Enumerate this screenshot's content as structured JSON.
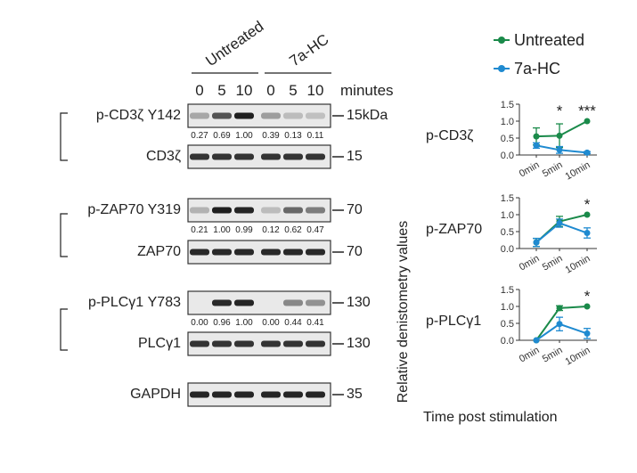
{
  "header": {
    "groups": [
      "Untreated",
      "7a-HC"
    ],
    "lanes": [
      "0",
      "5",
      "10",
      "0",
      "5",
      "10"
    ],
    "unit": "minutes"
  },
  "blots": [
    {
      "id": "pcd3",
      "label": "p-CD3ζ Y142",
      "mw": "15kDa",
      "intensity": [
        0.3,
        0.7,
        0.95,
        0.35,
        0.2,
        0.18
      ],
      "quant": [
        "0.27",
        "0.69",
        "1.00",
        "0.39",
        "0.13",
        "0.11"
      ]
    },
    {
      "id": "cd3",
      "label": "CD3ζ",
      "mw": "15",
      "intensity": [
        0.85,
        0.85,
        0.85,
        0.85,
        0.85,
        0.85
      ],
      "quant": []
    },
    {
      "id": "pzap",
      "label": "p-ZAP70 Y319",
      "mw": "70",
      "intensity": [
        0.25,
        0.95,
        0.92,
        0.2,
        0.6,
        0.5
      ],
      "quant": [
        "0.21",
        "1.00",
        "0.99",
        "0.12",
        "0.62",
        "0.47"
      ]
    },
    {
      "id": "zap",
      "label": "ZAP70",
      "mw": "70",
      "intensity": [
        0.9,
        0.9,
        0.9,
        0.9,
        0.9,
        0.9
      ],
      "quant": []
    },
    {
      "id": "pplc",
      "label": "p-PLCγ1 Y783",
      "mw": "130",
      "intensity": [
        0.0,
        0.9,
        0.92,
        0.0,
        0.45,
        0.4
      ],
      "quant": [
        "0.00",
        "0.96",
        "1.00",
        "0.00",
        "0.44",
        "0.41"
      ]
    },
    {
      "id": "plc",
      "label": "PLCγ1",
      "mw": "130",
      "intensity": [
        0.85,
        0.85,
        0.85,
        0.85,
        0.85,
        0.85
      ],
      "quant": []
    },
    {
      "id": "gapdh",
      "label": "GAPDH",
      "mw": "35",
      "intensity": [
        0.92,
        0.92,
        0.92,
        0.92,
        0.92,
        0.92
      ],
      "quant": []
    }
  ],
  "legend": {
    "items": [
      {
        "name": "Untreated",
        "color": "#1a8a4a"
      },
      {
        "name": "7a-HC",
        "color": "#1f8ad0"
      }
    ]
  },
  "y_axis_label": "Relative denistometry values",
  "x_axis_label": "Time post stimulation",
  "chart_data": [
    {
      "type": "line",
      "panel_label": "p-CD3ζ",
      "categories": [
        "0min",
        "5min",
        "10min"
      ],
      "ylim": [
        0,
        1.5
      ],
      "yticks": [
        "0.0",
        "0.5",
        "1.0",
        "1.5"
      ],
      "series": [
        {
          "name": "Untreated",
          "values": [
            0.55,
            0.57,
            1.0
          ],
          "errors": [
            0.25,
            0.35,
            0.0
          ]
        },
        {
          "name": "7a-HC",
          "values": [
            0.28,
            0.15,
            0.07
          ],
          "errors": [
            0.08,
            0.1,
            0.03
          ]
        }
      ],
      "significance": [
        "",
        "*",
        "***"
      ]
    },
    {
      "type": "line",
      "panel_label": "p-ZAP70",
      "categories": [
        "0min",
        "5min",
        "10min"
      ],
      "ylim": [
        0,
        1.5
      ],
      "yticks": [
        "0.0",
        "0.5",
        "1.0",
        "1.5"
      ],
      "series": [
        {
          "name": "Untreated",
          "values": [
            0.18,
            0.8,
            1.0
          ],
          "errors": [
            0.12,
            0.15,
            0.0
          ]
        },
        {
          "name": "7a-HC",
          "values": [
            0.18,
            0.75,
            0.46
          ],
          "errors": [
            0.12,
            0.12,
            0.15
          ]
        }
      ],
      "significance": [
        "",
        "",
        "*"
      ]
    },
    {
      "type": "line",
      "panel_label": "p-PLCγ1",
      "categories": [
        "0min",
        "5min",
        "10min"
      ],
      "ylim": [
        0,
        1.5
      ],
      "yticks": [
        "0.0",
        "0.5",
        "1.0",
        "1.5"
      ],
      "series": [
        {
          "name": "Untreated",
          "values": [
            0.0,
            0.95,
            1.0
          ],
          "errors": [
            0.0,
            0.07,
            0.0
          ]
        },
        {
          "name": "7a-HC",
          "values": [
            0.0,
            0.48,
            0.2
          ],
          "errors": [
            0.0,
            0.2,
            0.15
          ]
        }
      ],
      "significance": [
        "",
        "",
        "*"
      ]
    }
  ]
}
